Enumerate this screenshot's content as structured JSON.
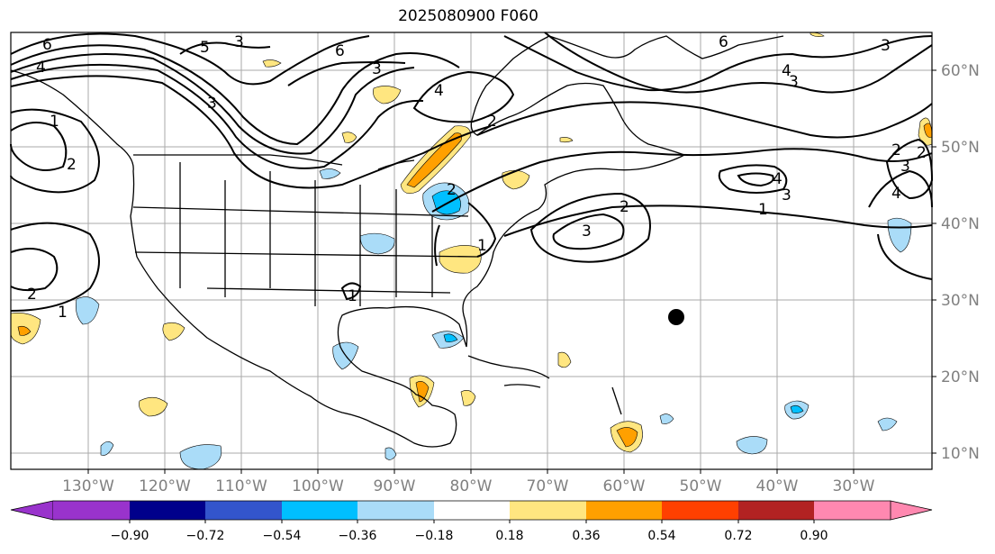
{
  "title": "2025080900 F060",
  "longitude_labels": [
    "130°W",
    "120°W",
    "110°W",
    "100°W",
    "90°W",
    "80°W",
    "70°W",
    "60°W",
    "50°W",
    "40°W",
    "30°W"
  ],
  "latitude_labels": [
    "60°N",
    "50°N",
    "40°N",
    "30°N",
    "20°N",
    "10°N"
  ],
  "colorbar": {
    "ticks": [
      "−0.90",
      "−0.72",
      "−0.54",
      "−0.36",
      "−0.18",
      "0.18",
      "0.36",
      "0.54",
      "0.72",
      "0.90"
    ],
    "colors": [
      "#9933cc",
      "#00008b",
      "#3355cc",
      "#00bfff",
      "#aadcf8",
      "#ffffff",
      "#ffe680",
      "#ffa000",
      "#ff4000",
      "#b22222",
      "#ff88b0"
    ]
  },
  "contour_labels": [
    "6",
    "5",
    "4",
    "3",
    "6",
    "3",
    "4",
    "2",
    "3",
    "2",
    "1",
    "2",
    "6",
    "3",
    "4",
    "3",
    "4",
    "2",
    "3",
    "1",
    "4",
    "3",
    "2",
    "1",
    "2",
    "3",
    "1",
    "2",
    "1"
  ],
  "marker": "black-dot"
}
